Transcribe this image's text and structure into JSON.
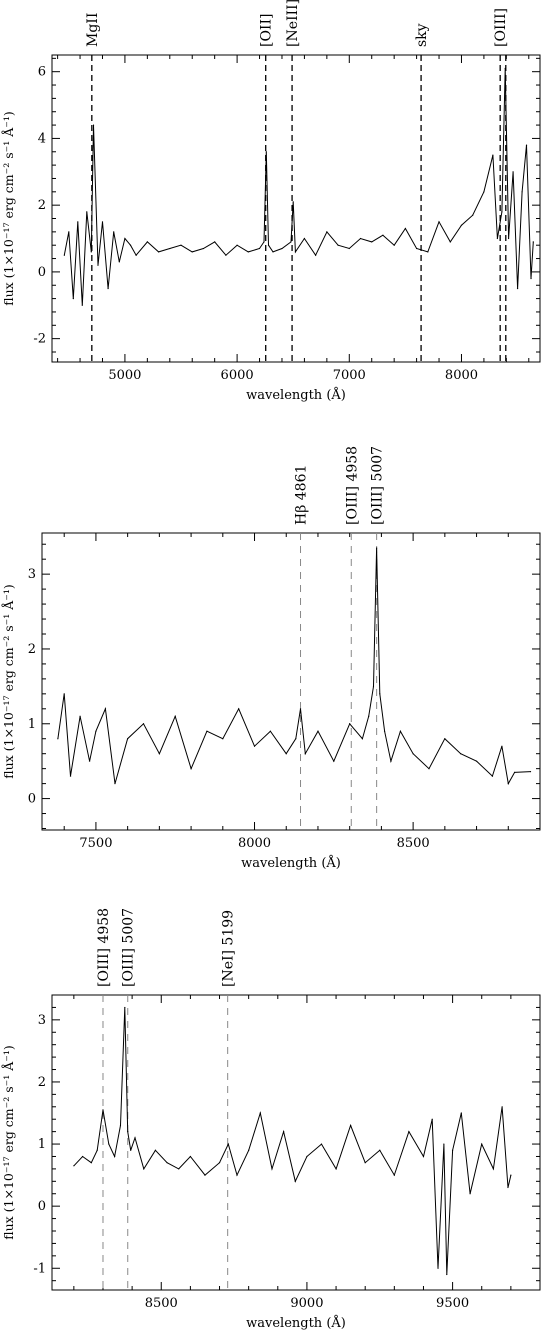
{
  "chart_data": [
    {
      "type": "line",
      "xlabel": "wavelength (Å)",
      "ylabel": "flux (1×10⁻¹⁷ erg cm⁻² s⁻¹ Å⁻¹)",
      "xlim": [
        4350,
        8700
      ],
      "ylim": [
        -2.7,
        6.5
      ],
      "xticks": [
        5000,
        6000,
        7000,
        8000
      ],
      "yticks": [
        -2,
        0,
        2,
        4,
        6
      ],
      "grid": false,
      "series": [
        {
          "x": [
            4460,
            4500,
            4540,
            4580,
            4620,
            4660,
            4700,
            4720,
            4760,
            4800,
            4850,
            4900,
            4950,
            5000,
            5050,
            5100,
            5200,
            5300,
            5400,
            5500,
            5600,
            5700,
            5800,
            5900,
            6000,
            6100,
            6200,
            6240,
            6260,
            6280,
            6320,
            6400,
            6480,
            6500,
            6520,
            6600,
            6700,
            6800,
            6900,
            7000,
            7100,
            7200,
            7300,
            7400,
            7500,
            7600,
            7700,
            7800,
            7900,
            8000,
            8100,
            8200,
            8280,
            8320,
            8360,
            8390,
            8420,
            8460,
            8500,
            8540,
            8580,
            8620,
            8640
          ],
          "y": [
            0.5,
            1.2,
            -0.8,
            1.5,
            -1.0,
            1.8,
            0.6,
            4.4,
            0.2,
            1.5,
            -0.5,
            1.2,
            0.3,
            1.0,
            0.8,
            0.5,
            0.9,
            0.6,
            0.7,
            0.8,
            0.6,
            0.7,
            0.9,
            0.5,
            0.8,
            0.6,
            0.7,
            0.9,
            3.6,
            0.8,
            0.6,
            0.7,
            0.9,
            2.1,
            0.6,
            1.0,
            0.5,
            1.2,
            0.8,
            0.7,
            1.0,
            0.9,
            1.1,
            0.8,
            1.3,
            0.7,
            0.6,
            1.5,
            0.9,
            1.4,
            1.7,
            2.4,
            3.5,
            1.0,
            1.8,
            6.1,
            1.0,
            3.0,
            -0.5,
            2.4,
            3.8,
            -0.2,
            0.9
          ]
        }
      ],
      "annotations": [
        {
          "label": "MgII",
          "x": 4705
        },
        {
          "label": "[OII]",
          "x": 6255
        },
        {
          "label": "[NeIII]",
          "x": 6490
        },
        {
          "label": "sky",
          "x": 7640
        },
        {
          "label": "[OIII]",
          "x": 8345
        },
        {
          "label": "",
          "x": 8395
        }
      ]
    },
    {
      "type": "line",
      "xlabel": "wavelength (Å)",
      "ylabel": "flux (1×10⁻¹⁷ erg cm⁻² s⁻¹ Å⁻¹)",
      "xlim": [
        7330,
        8900
      ],
      "ylim": [
        -0.42,
        3.55
      ],
      "xticks": [
        7500,
        8000,
        8500
      ],
      "yticks": [
        0,
        1,
        2,
        3
      ],
      "grid": false,
      "series": [
        {
          "x": [
            7380,
            7400,
            7420,
            7450,
            7480,
            7500,
            7530,
            7560,
            7600,
            7650,
            7700,
            7750,
            7800,
            7850,
            7900,
            7950,
            8000,
            8050,
            8100,
            8130,
            8145,
            8160,
            8200,
            8250,
            8300,
            8340,
            8360,
            8375,
            8385,
            8395,
            8410,
            8430,
            8460,
            8500,
            8550,
            8600,
            8650,
            8700,
            8750,
            8780,
            8800,
            8820,
            8870
          ],
          "y": [
            0.8,
            1.4,
            0.3,
            1.1,
            0.5,
            0.9,
            1.2,
            0.2,
            0.8,
            1.0,
            0.6,
            1.1,
            0.4,
            0.9,
            0.8,
            1.2,
            0.7,
            0.9,
            0.6,
            0.8,
            1.2,
            0.6,
            0.9,
            0.5,
            1.0,
            0.8,
            1.1,
            1.5,
            3.35,
            1.4,
            0.9,
            0.5,
            0.9,
            0.6,
            0.4,
            0.8,
            0.6,
            0.5,
            0.3,
            0.7,
            0.2,
            0.35,
            0.36
          ]
        }
      ],
      "annotations": [
        {
          "label": "Hβ 4861",
          "x": 8145
        },
        {
          "label": "[OIII] 4958",
          "x": 8305
        },
        {
          "label": "[OIII] 5007",
          "x": 8385
        }
      ]
    },
    {
      "type": "line",
      "xlabel": "wavelength (Å)",
      "ylabel": "flux (1×10⁻¹⁷ erg cm⁻² s⁻¹ Å⁻¹)",
      "xlim": [
        8125,
        9800
      ],
      "ylim": [
        -1.35,
        3.4
      ],
      "xticks": [
        8500,
        9000,
        9500
      ],
      "yticks": [
        -1,
        0,
        1,
        2,
        3
      ],
      "grid": false,
      "series": [
        {
          "x": [
            8200,
            8230,
            8260,
            8280,
            8300,
            8320,
            8340,
            8360,
            8375,
            8385,
            8395,
            8410,
            8440,
            8480,
            8520,
            8560,
            8600,
            8650,
            8700,
            8730,
            8760,
            8800,
            8840,
            8880,
            8920,
            8960,
            9000,
            9050,
            9100,
            9150,
            9200,
            9250,
            9300,
            9350,
            9400,
            9430,
            9450,
            9470,
            9480,
            9500,
            9530,
            9560,
            9600,
            9640,
            9670,
            9690,
            9700
          ],
          "y": [
            0.65,
            0.8,
            0.7,
            0.9,
            1.55,
            1.0,
            0.8,
            1.3,
            3.2,
            1.2,
            0.9,
            1.1,
            0.6,
            0.9,
            0.7,
            0.6,
            0.8,
            0.5,
            0.7,
            1.0,
            0.5,
            0.9,
            1.5,
            0.6,
            1.2,
            0.4,
            0.8,
            1.0,
            0.6,
            1.3,
            0.7,
            0.9,
            0.5,
            1.2,
            0.8,
            1.4,
            -1.0,
            1.0,
            -1.1,
            0.9,
            1.5,
            0.2,
            1.0,
            0.6,
            1.6,
            0.3,
            0.5
          ]
        }
      ],
      "annotations": [
        {
          "label": "[OIII] 4958",
          "x": 8300
        },
        {
          "label": "[OIII] 5007",
          "x": 8385
        },
        {
          "label": "[NeI] 5199",
          "x": 8728
        }
      ]
    }
  ]
}
